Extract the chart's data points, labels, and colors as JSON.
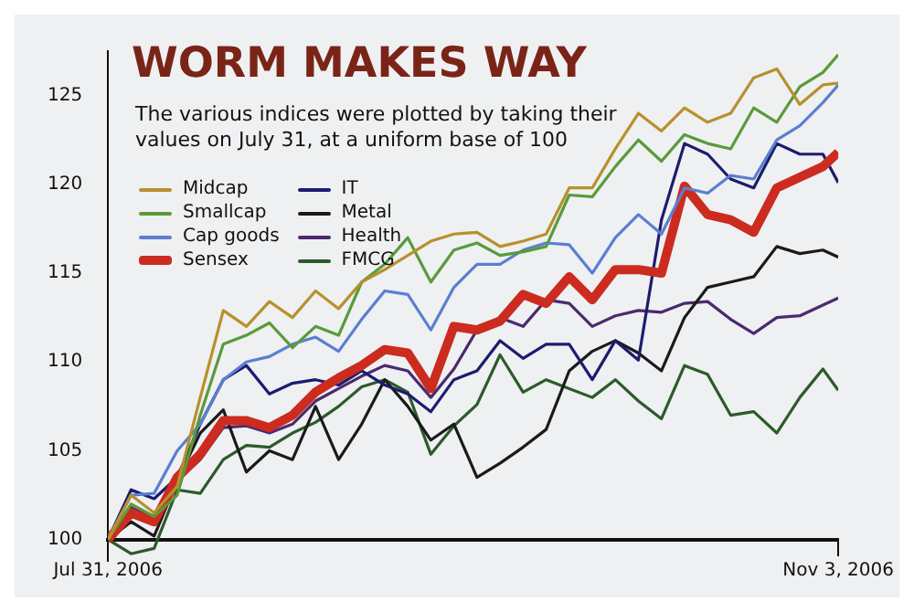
{
  "chart_data": {
    "type": "line",
    "title": "WORM MAKES WAY",
    "subtitle": "The various indices were plotted by taking their values on July 31, at a uniform base of 100",
    "x": [
      "2006-07-31",
      "2006-08-03",
      "2006-08-06",
      "2006-08-09",
      "2006-08-12",
      "2006-08-15",
      "2006-08-18",
      "2006-08-21",
      "2006-08-24",
      "2006-08-27",
      "2006-08-30",
      "2006-09-02",
      "2006-09-05",
      "2006-09-08",
      "2006-09-11",
      "2006-09-14",
      "2006-09-17",
      "2006-09-20",
      "2006-09-23",
      "2006-09-26",
      "2006-09-29",
      "2006-10-02",
      "2006-10-05",
      "2006-10-08",
      "2006-10-11",
      "2006-10-14",
      "2006-10-17",
      "2006-10-20",
      "2006-10-23",
      "2006-10-26",
      "2006-10-29",
      "2006-11-01",
      "2006-11-03"
    ],
    "series": [
      {
        "name": "Midcap",
        "color": "#b8902c",
        "values": [
          100,
          102.5,
          101.5,
          103,
          108,
          112.9,
          112,
          113.4,
          112.5,
          114,
          113,
          114.5,
          115.2,
          116,
          116.8,
          117.2,
          117.3,
          116.5,
          116.8,
          117.2,
          119.8,
          119.8,
          122,
          124,
          123,
          124.3,
          123.5,
          124,
          126,
          126.5,
          124.5,
          125.6,
          125.7
        ]
      },
      {
        "name": "Smallcap",
        "color": "#5a9a3a",
        "values": [
          100,
          102,
          101.3,
          102.5,
          107,
          111,
          111.5,
          112.2,
          110.8,
          112,
          111.5,
          114.5,
          115.5,
          117,
          114.5,
          116.3,
          116.7,
          116,
          116.2,
          116.5,
          119.4,
          119.3,
          121,
          122.5,
          121.3,
          122.8,
          122.3,
          122,
          124.3,
          123.5,
          125.5,
          126.3,
          127.3
        ]
      },
      {
        "name": "Cap goods",
        "color": "#5a7fd0",
        "values": [
          100,
          102.5,
          102.6,
          105,
          106.5,
          109,
          110,
          110.3,
          111,
          111.4,
          110.6,
          112.4,
          114,
          113.8,
          111.8,
          114.2,
          115.5,
          115.5,
          116.3,
          116.7,
          116.6,
          115,
          117,
          118.3,
          117.2,
          119.8,
          119.5,
          120.5,
          120.3,
          122.5,
          123.3,
          124.6,
          125.6
        ]
      },
      {
        "name": "Sensex",
        "color": "#cc2b1f",
        "values": [
          100,
          101.5,
          101,
          103.5,
          104.8,
          106.7,
          106.7,
          106.3,
          107,
          108.3,
          109.1,
          109.8,
          110.7,
          110.5,
          108.5,
          112,
          111.8,
          112.3,
          113.8,
          113.3,
          114.8,
          113.5,
          115.2,
          115.2,
          115,
          119.9,
          118.3,
          118,
          117.3,
          119.8,
          120.4,
          121,
          121.8
        ]
      },
      {
        "name": "IT",
        "color": "#1c1c6e",
        "values": [
          100,
          102.8,
          102.3,
          103.5,
          106.5,
          109,
          109.8,
          108.2,
          108.8,
          109,
          108.7,
          109.5,
          108.7,
          108.2,
          107.2,
          109,
          109.5,
          111.2,
          110.2,
          111,
          111,
          109,
          111.2,
          110.1,
          118,
          122.3,
          121.7,
          120.3,
          119.8,
          122.3,
          121.7,
          121.7,
          120.1
        ]
      },
      {
        "name": "Metal",
        "color": "#1a1a1a",
        "values": [
          100,
          101,
          100.2,
          103.3,
          106,
          107.3,
          103.8,
          105,
          104.5,
          107.5,
          104.5,
          106.5,
          109,
          107.5,
          105.6,
          106.5,
          103.5,
          104.3,
          105.2,
          106.2,
          109.5,
          110.6,
          111.2,
          110.5,
          109.5,
          112.5,
          114.2,
          114.5,
          114.8,
          116.5,
          116.1,
          116.3,
          115.9
        ]
      },
      {
        "name": "Health",
        "color": "#4b2a6e",
        "values": [
          100,
          101.8,
          101.2,
          103.3,
          104.5,
          106.3,
          106.4,
          106,
          106.5,
          107.8,
          108.5,
          109.2,
          109.8,
          109.5,
          108,
          109.6,
          111.8,
          112.5,
          112,
          113.5,
          113.3,
          112,
          112.6,
          112.9,
          112.8,
          113.3,
          113.4,
          112.4,
          111.6,
          112.5,
          112.6,
          113.2,
          113.6
        ]
      },
      {
        "name": "FMCG",
        "color": "#2d5a2a",
        "values": [
          100,
          99.2,
          99.5,
          102.8,
          102.6,
          104.5,
          105.3,
          105.2,
          106,
          106.6,
          107.5,
          108.6,
          109,
          108.3,
          104.8,
          106.4,
          107.6,
          110.4,
          108.3,
          109,
          108.5,
          108,
          109,
          107.8,
          106.8,
          109.8,
          109.3,
          107,
          107.2,
          106,
          108,
          109.6,
          108.4
        ]
      }
    ],
    "xlim": [
      "2006-07-31",
      "2006-11-03"
    ],
    "xticks": [
      {
        "value": "2006-07-31",
        "label": "Jul 31, 2006"
      },
      {
        "value": "2006-11-03",
        "label": "Nov 3, 2006"
      }
    ],
    "ylim": [
      98.8,
      127.5
    ],
    "yticks": [
      100,
      105,
      110,
      115,
      120,
      125
    ],
    "grid": false,
    "legend": "top left",
    "marker": "none",
    "line_style": "solid"
  }
}
